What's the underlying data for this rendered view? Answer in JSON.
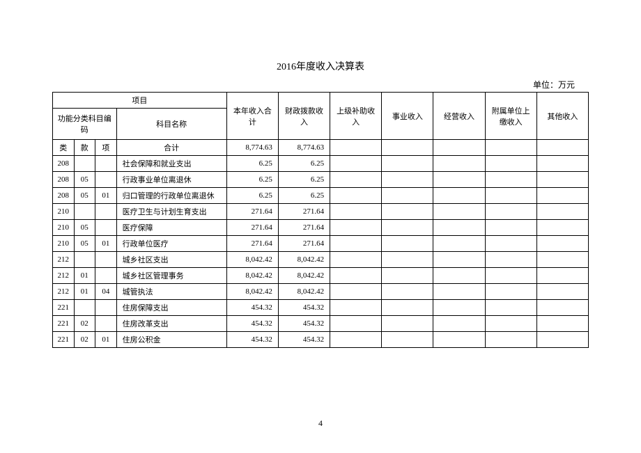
{
  "title": "2016年度收入决算表",
  "unit_label": "单位：万元",
  "page_number": "4",
  "headers": {
    "project": "项目",
    "func_code": "功能分类科目编码",
    "subject_name": "科目名称",
    "total_income": "本年收入合计",
    "fiscal_income": "财政拨款收入",
    "superior_subsidy": "上级补助收入",
    "business_income": "事业收入",
    "operating_income": "经营收入",
    "subordinate_income": "附属单位上缴收入",
    "other_income": "其他收入",
    "lei": "类",
    "kuan": "款",
    "xiang": "项",
    "heji": "合计"
  },
  "rows": [
    {
      "lei": "",
      "kuan": "",
      "xiang": "",
      "name": "合计",
      "total": "8,774.63",
      "fiscal": "8,774.63",
      "sup": "",
      "bus": "",
      "op": "",
      "sub": "",
      "oth": "",
      "name_center": true
    },
    {
      "lei": "208",
      "kuan": "",
      "xiang": "",
      "name": "社会保障和就业支出",
      "total": "6.25",
      "fiscal": "6.25",
      "sup": "",
      "bus": "",
      "op": "",
      "sub": "",
      "oth": ""
    },
    {
      "lei": "208",
      "kuan": "05",
      "xiang": "",
      "name": "行政事业单位离退休",
      "total": "6.25",
      "fiscal": "6.25",
      "sup": "",
      "bus": "",
      "op": "",
      "sub": "",
      "oth": ""
    },
    {
      "lei": "208",
      "kuan": "05",
      "xiang": "01",
      "name": "归口管理的行政单位离退休",
      "total": "6.25",
      "fiscal": "6.25",
      "sup": "",
      "bus": "",
      "op": "",
      "sub": "",
      "oth": ""
    },
    {
      "lei": "210",
      "kuan": "",
      "xiang": "",
      "name": "医疗卫生与计划生育支出",
      "total": "271.64",
      "fiscal": "271.64",
      "sup": "",
      "bus": "",
      "op": "",
      "sub": "",
      "oth": ""
    },
    {
      "lei": "210",
      "kuan": "05",
      "xiang": "",
      "name": "医疗保障",
      "total": "271.64",
      "fiscal": "271.64",
      "sup": "",
      "bus": "",
      "op": "",
      "sub": "",
      "oth": ""
    },
    {
      "lei": "210",
      "kuan": "05",
      "xiang": "01",
      "name": "行政单位医疗",
      "total": "271.64",
      "fiscal": "271.64",
      "sup": "",
      "bus": "",
      "op": "",
      "sub": "",
      "oth": ""
    },
    {
      "lei": "212",
      "kuan": "",
      "xiang": "",
      "name": "城乡社区支出",
      "total": "8,042.42",
      "fiscal": "8,042.42",
      "sup": "",
      "bus": "",
      "op": "",
      "sub": "",
      "oth": ""
    },
    {
      "lei": "212",
      "kuan": "01",
      "xiang": "",
      "name": "城乡社区管理事务",
      "total": "8,042.42",
      "fiscal": "8,042.42",
      "sup": "",
      "bus": "",
      "op": "",
      "sub": "",
      "oth": ""
    },
    {
      "lei": "212",
      "kuan": "01",
      "xiang": "04",
      "name": "城管执法",
      "total": "8,042.42",
      "fiscal": "8,042.42",
      "sup": "",
      "bus": "",
      "op": "",
      "sub": "",
      "oth": ""
    },
    {
      "lei": "221",
      "kuan": "",
      "xiang": "",
      "name": "住房保障支出",
      "total": "454.32",
      "fiscal": "454.32",
      "sup": "",
      "bus": "",
      "op": "",
      "sub": "",
      "oth": ""
    },
    {
      "lei": "221",
      "kuan": "02",
      "xiang": "",
      "name": "住房改革支出",
      "total": "454.32",
      "fiscal": "454.32",
      "sup": "",
      "bus": "",
      "op": "",
      "sub": "",
      "oth": ""
    },
    {
      "lei": "221",
      "kuan": "02",
      "xiang": "01",
      "name": "住房公积金",
      "total": "454.32",
      "fiscal": "454.32",
      "sup": "",
      "bus": "",
      "op": "",
      "sub": "",
      "oth": ""
    }
  ],
  "styling": {
    "background_color": "#ffffff",
    "border_color": "#000000",
    "font_family": "SimSun",
    "title_fontsize": 14,
    "cell_fontsize": 11,
    "code_col_width": 28,
    "name_col_width": 145,
    "num_col_width": 68
  }
}
